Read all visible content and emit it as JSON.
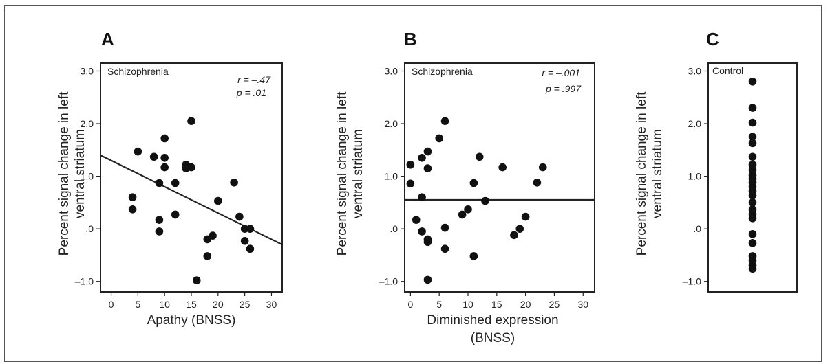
{
  "chart_data": [
    {
      "type": "scatter",
      "panel_letter": "A",
      "group_label": "Schizophrenia",
      "stats": {
        "r": "r = –.47",
        "p": "p = .01"
      },
      "xlabel_lines": [
        "Apathy (BNSS)"
      ],
      "ylabel_lines": [
        "Percent signal change in left",
        "ventral striatum"
      ],
      "xticks": [
        {
          "v": 0,
          "label": "0"
        },
        {
          "v": 5,
          "label": "5"
        },
        {
          "v": 10,
          "label": "10"
        },
        {
          "v": 15,
          "label": "15"
        },
        {
          "v": 20,
          "label": "20"
        },
        {
          "v": 25,
          "label": "25"
        },
        {
          "v": 30,
          "label": "30"
        }
      ],
      "yticks": [
        {
          "v": -1.0,
          "label": "–1.0"
        },
        {
          "v": 0.0,
          "label": ".0"
        },
        {
          "v": 1.0,
          "label": "1.0"
        },
        {
          "v": 2.0,
          "label": "2.0"
        },
        {
          "v": 3.0,
          "label": "3.0"
        }
      ],
      "xlim": [
        -2,
        32
      ],
      "ylim": [
        -1.2,
        3.15
      ],
      "points": [
        {
          "x": 4,
          "y": 0.6
        },
        {
          "x": 4,
          "y": 0.37
        },
        {
          "x": 5,
          "y": 1.47
        },
        {
          "x": 8,
          "y": 1.37
        },
        {
          "x": 9,
          "y": 0.87
        },
        {
          "x": 9,
          "y": 0.17
        },
        {
          "x": 9,
          "y": -0.05
        },
        {
          "x": 10,
          "y": 1.72
        },
        {
          "x": 10,
          "y": 1.35
        },
        {
          "x": 10,
          "y": 1.17
        },
        {
          "x": 12,
          "y": 0.87
        },
        {
          "x": 12,
          "y": 0.27
        },
        {
          "x": 14,
          "y": 1.22
        },
        {
          "x": 14,
          "y": 1.15
        },
        {
          "x": 15,
          "y": 2.05
        },
        {
          "x": 15,
          "y": 1.17
        },
        {
          "x": 16,
          "y": -0.98
        },
        {
          "x": 18,
          "y": -0.2
        },
        {
          "x": 18,
          "y": -0.52
        },
        {
          "x": 19,
          "y": -0.13
        },
        {
          "x": 20,
          "y": 0.53
        },
        {
          "x": 23,
          "y": 0.88
        },
        {
          "x": 24,
          "y": 0.23
        },
        {
          "x": 25,
          "y": 0.0
        },
        {
          "x": 25,
          "y": -0.23
        },
        {
          "x": 26,
          "y": 0.0
        },
        {
          "x": 26,
          "y": -0.38
        }
      ],
      "fit_line": {
        "x": [
          -2,
          32
        ],
        "y": [
          1.4,
          -0.3
        ]
      }
    },
    {
      "type": "scatter",
      "panel_letter": "B",
      "group_label": "Schizophrenia",
      "stats": {
        "r": "r = –.001",
        "p": "p = .997"
      },
      "xlabel_lines": [
        "Diminished expression",
        "(BNSS)"
      ],
      "ylabel_lines": [
        "Percent signal change in left",
        "ventral striatum"
      ],
      "xticks": [
        {
          "v": 0,
          "label": "0"
        },
        {
          "v": 5,
          "label": "5"
        },
        {
          "v": 10,
          "label": "10"
        },
        {
          "v": 15,
          "label": "15"
        },
        {
          "v": 20,
          "label": "20"
        },
        {
          "v": 25,
          "label": "25"
        },
        {
          "v": 30,
          "label": "30"
        }
      ],
      "yticks": [
        {
          "v": -1.0,
          "label": "–1.0"
        },
        {
          "v": 0.0,
          "label": ".0"
        },
        {
          "v": 1.0,
          "label": "1.0"
        },
        {
          "v": 2.0,
          "label": "2.0"
        },
        {
          "v": 3.0,
          "label": "3.0"
        }
      ],
      "xlim": [
        -1,
        32
      ],
      "ylim": [
        -1.2,
        3.15
      ],
      "points": [
        {
          "x": 0,
          "y": 1.22
        },
        {
          "x": 0,
          "y": 0.86
        },
        {
          "x": 1,
          "y": 0.17
        },
        {
          "x": 2,
          "y": 1.35
        },
        {
          "x": 2,
          "y": 0.6
        },
        {
          "x": 2,
          "y": -0.05
        },
        {
          "x": 3,
          "y": 1.47
        },
        {
          "x": 3,
          "y": 1.15
        },
        {
          "x": 3,
          "y": -0.2
        },
        {
          "x": 3,
          "y": -0.25
        },
        {
          "x": 3,
          "y": -0.97
        },
        {
          "x": 5,
          "y": 1.72
        },
        {
          "x": 6,
          "y": 2.05
        },
        {
          "x": 6,
          "y": 0.02
        },
        {
          "x": 6,
          "y": -0.38
        },
        {
          "x": 9,
          "y": 0.27
        },
        {
          "x": 10,
          "y": 0.37
        },
        {
          "x": 11,
          "y": 0.87
        },
        {
          "x": 11,
          "y": -0.52
        },
        {
          "x": 12,
          "y": 1.37
        },
        {
          "x": 13,
          "y": 0.53
        },
        {
          "x": 16,
          "y": 1.17
        },
        {
          "x": 18,
          "y": -0.12
        },
        {
          "x": 19,
          "y": 0.0
        },
        {
          "x": 20,
          "y": 0.23
        },
        {
          "x": 22,
          "y": 0.88
        },
        {
          "x": 23,
          "y": 1.17
        }
      ],
      "fit_line": {
        "x": [
          -1,
          32
        ],
        "y": [
          0.55,
          0.55
        ]
      }
    },
    {
      "type": "scatter",
      "panel_letter": "C",
      "group_label": "Control",
      "ylabel_lines": [
        "Percent signal change in left",
        "ventral striatum"
      ],
      "yticks": [
        {
          "v": -1.0,
          "label": "–1.0"
        },
        {
          "v": 0.0,
          "label": ".0"
        },
        {
          "v": 1.0,
          "label": "1.0"
        },
        {
          "v": 2.0,
          "label": "2.0"
        },
        {
          "v": 3.0,
          "label": "3.0"
        }
      ],
      "ylim": [
        -1.2,
        3.15
      ],
      "values": [
        2.8,
        2.3,
        2.02,
        1.75,
        1.63,
        1.37,
        1.22,
        1.12,
        1.02,
        0.95,
        0.88,
        0.8,
        0.72,
        0.63,
        0.5,
        0.37,
        0.28,
        0.2,
        -0.1,
        -0.27,
        -0.52,
        -0.6,
        -0.7,
        -0.76
      ]
    }
  ]
}
